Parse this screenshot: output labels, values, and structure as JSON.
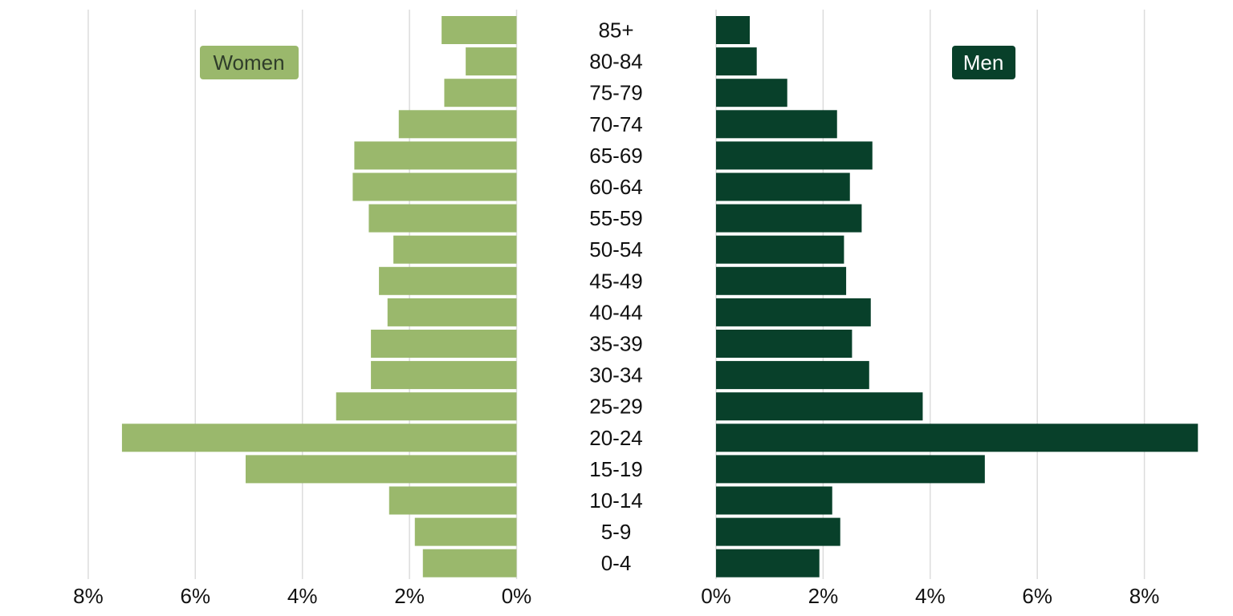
{
  "colors": {
    "women": "#9ab86c",
    "men": "#08402a",
    "women_text": "#2f3d2a",
    "men_text": "#ffffff",
    "grid": "#dcdcdc"
  },
  "chart_data": {
    "type": "bar",
    "orientation": "horizontal-pyramid",
    "categories": [
      "85+",
      "80-84",
      "75-79",
      "70-74",
      "65-69",
      "60-64",
      "55-59",
      "50-54",
      "45-49",
      "40-44",
      "35-39",
      "30-34",
      "25-29",
      "20-24",
      "15-19",
      "10-14",
      "5-9",
      "0-4"
    ],
    "series": [
      {
        "name": "Women",
        "side": "left",
        "values": [
          1.4,
          0.95,
          1.35,
          2.2,
          3.03,
          3.06,
          2.76,
          2.3,
          2.57,
          2.41,
          2.72,
          2.72,
          3.37,
          7.37,
          5.06,
          2.38,
          1.9,
          1.75
        ]
      },
      {
        "name": "Men",
        "side": "right",
        "values": [
          0.63,
          0.76,
          1.33,
          2.26,
          2.92,
          2.5,
          2.72,
          2.39,
          2.43,
          2.89,
          2.54,
          2.86,
          3.86,
          9.0,
          5.02,
          2.17,
          2.32,
          1.93
        ]
      }
    ],
    "xlim": [
      0,
      8
    ],
    "ticks": [
      8,
      6,
      4,
      2,
      0
    ],
    "tick_labels_left": [
      "8%",
      "6%",
      "4%",
      "2%",
      "0%"
    ],
    "tick_labels_right": [
      "0%",
      "2%",
      "4%",
      "6%",
      "8%"
    ],
    "grid": true,
    "legend": {
      "women_label": "Women",
      "men_label": "Men",
      "women_position": "top-left",
      "men_position": "top-right"
    }
  }
}
